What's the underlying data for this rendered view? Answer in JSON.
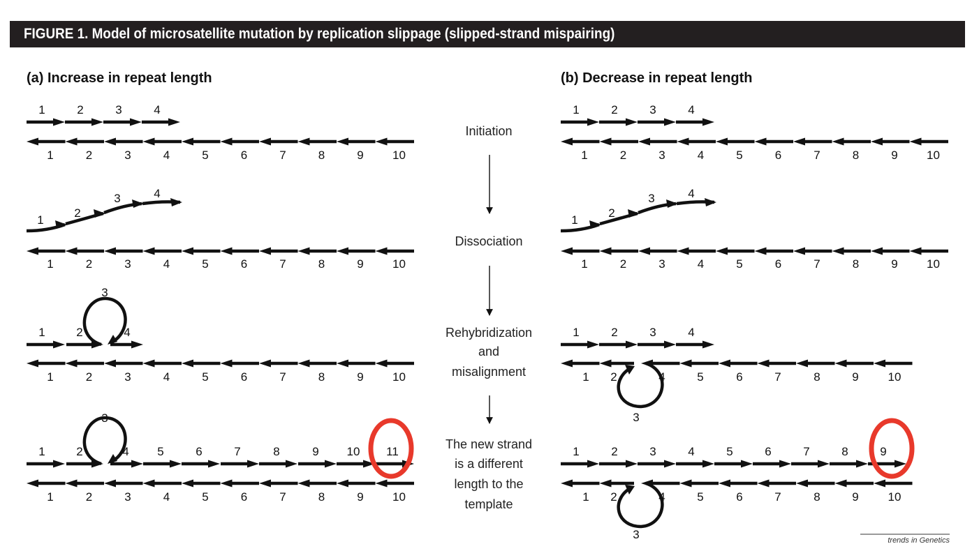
{
  "figure_title": "FIGURE 1. Model of microsatellite mutation by replication slippage (slipped-strand mispairing)",
  "panel_a": {
    "letter": "(a)",
    "label": "Increase in repeat length"
  },
  "panel_b": {
    "letter": "(b)",
    "label": "Decrease in repeat length"
  },
  "steps": [
    {
      "lines": [
        "Initiation"
      ]
    },
    {
      "lines": [
        "Dissociation"
      ]
    },
    {
      "lines": [
        "Rehybridization",
        "and",
        "misalignment"
      ]
    },
    {
      "lines": [
        "The new strand",
        "is a different",
        "length to the",
        "template"
      ]
    }
  ],
  "template_repeats": [
    "1",
    "2",
    "3",
    "4",
    "5",
    "6",
    "7",
    "8",
    "9",
    "10"
  ],
  "primer_repeats": [
    "1",
    "2",
    "3",
    "4"
  ],
  "loop_repeat": "3",
  "increase_new_strand": [
    "1",
    "2",
    "4",
    "5",
    "6",
    "7",
    "8",
    "9",
    "10",
    "11"
  ],
  "decrease_new_strand": [
    "1",
    "2",
    "3",
    "4",
    "5",
    "6",
    "7",
    "8",
    "9"
  ],
  "decrease_misaligned_template": [
    "1",
    "2",
    "4",
    "5",
    "6",
    "7",
    "8",
    "9",
    "10"
  ],
  "highlights": {
    "increase": "11",
    "decrease": "9",
    "color": "#e8392b"
  },
  "source_label": "trends in Genetics"
}
